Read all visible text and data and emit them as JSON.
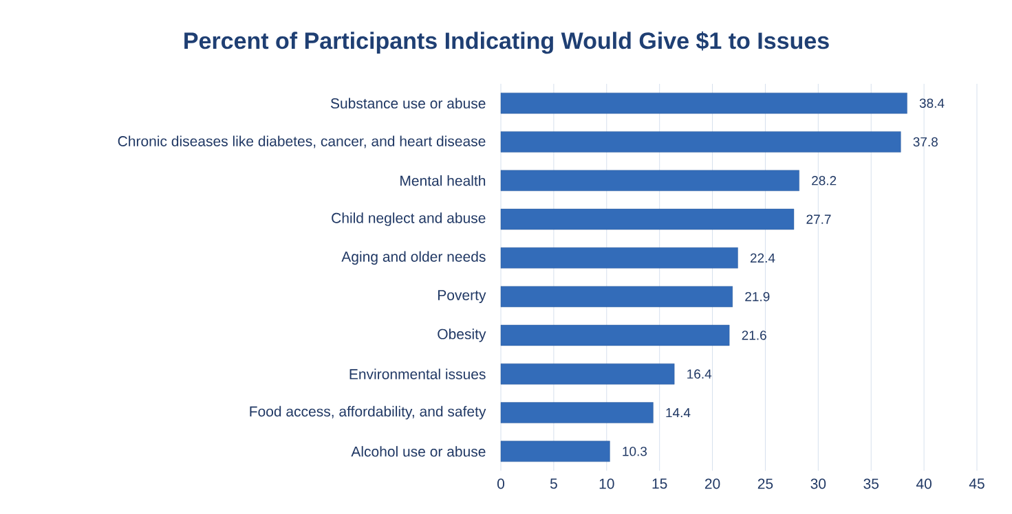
{
  "chart_data": {
    "type": "bar",
    "orientation": "horizontal",
    "title": "Percent of Participants  Indicating Would Give $1 to Issues",
    "categories": [
      "Substance use or abuse",
      "Chronic diseases like diabetes, cancer, and heart disease",
      "Mental health",
      "Child neglect and abuse",
      "Aging and older needs",
      "Poverty",
      "Obesity",
      "Environmental issues",
      "Food access, affordability, and safety",
      "Alcohol use or abuse"
    ],
    "values": [
      38.4,
      37.8,
      28.2,
      27.7,
      22.4,
      21.9,
      21.6,
      16.4,
      14.4,
      10.3
    ],
    "color": "#336cb9",
    "xlim": [
      0,
      45
    ],
    "xticks": [
      0,
      5,
      10,
      15,
      20,
      25,
      30,
      35,
      40,
      45
    ],
    "grid": "x",
    "data_labels": true
  }
}
